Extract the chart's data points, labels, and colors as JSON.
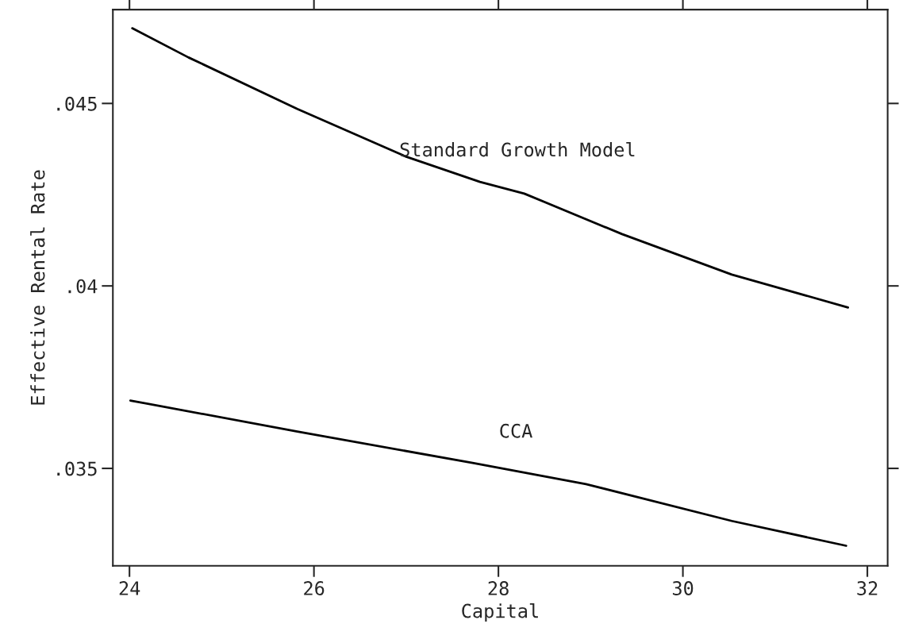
{
  "chart_data": {
    "type": "line",
    "xlabel": "Capital",
    "ylabel": "Effective Rental Rate",
    "xlim": [
      23.82,
      32.22
    ],
    "ylim": [
      0.03233,
      0.04757
    ],
    "xticks": [
      24,
      26,
      28,
      30,
      32
    ],
    "yticks": [
      {
        "value": 0.035,
        "label": ".035"
      },
      {
        "value": 0.04,
        "label": ".04"
      },
      {
        "value": 0.045,
        "label": ".045"
      }
    ],
    "grid": false,
    "legend": false,
    "marker": "none",
    "line_style": "solid",
    "series": [
      {
        "name": "Standard Growth Model",
        "color": "#000000",
        "x": [
          24.03,
          24.64,
          25.82,
          27.0,
          27.8,
          28.28,
          29.34,
          30.53,
          31.79
        ],
        "values": [
          0.04706,
          0.04626,
          0.04485,
          0.04354,
          0.04285,
          0.04253,
          0.04142,
          0.04031,
          0.03941
        ]
      },
      {
        "name": "CCA",
        "color": "#000000",
        "x": [
          24.01,
          25.82,
          27.72,
          28.95,
          30.53,
          31.77
        ],
        "values": [
          0.03686,
          0.03601,
          0.03515,
          0.03457,
          0.03356,
          0.03288
        ]
      }
    ]
  }
}
